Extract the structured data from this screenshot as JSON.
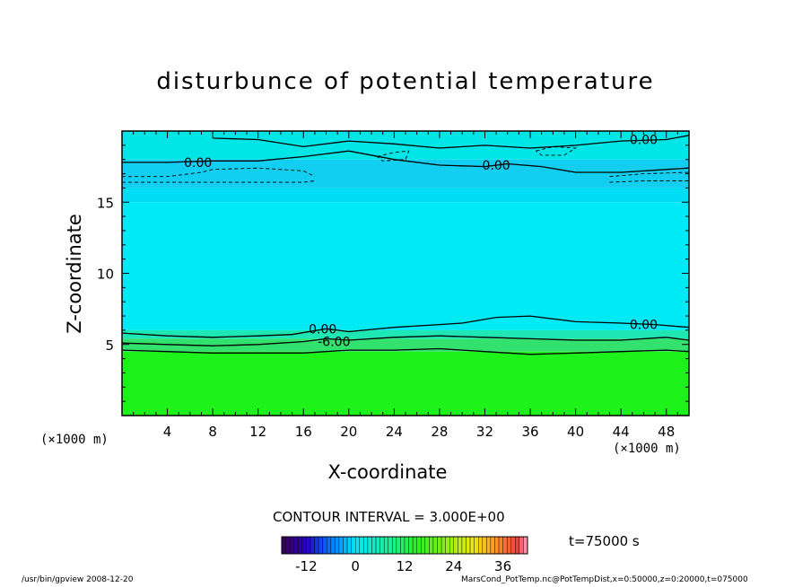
{
  "chart_data": {
    "type": "heatmap",
    "title": "disturbunce of potential temperature",
    "xlabel": "X-coordinate",
    "ylabel": "Z-coordinate",
    "x_unit_label": "(×1000 m)",
    "xlim": [
      0,
      50
    ],
    "ylim": [
      0,
      20
    ],
    "x_ticks": [
      4,
      8,
      12,
      16,
      20,
      24,
      28,
      32,
      36,
      40,
      44,
      48
    ],
    "y_ticks": [
      5,
      10,
      15
    ],
    "contour_interval": "CONTOUR INTERVAL = 3.000E+00",
    "contour_labels": [
      "0.00",
      "0.00",
      "0.00",
      "0.00",
      "-6.00",
      "0.00"
    ],
    "time": "t=75000 s",
    "colorbar": {
      "range": [
        -18,
        42
      ],
      "ticks": [
        -12,
        0,
        12,
        24,
        36
      ]
    },
    "layers": [
      {
        "z_from": 0,
        "z_to": 4.5,
        "value": 3,
        "color": "#1df21a"
      },
      {
        "z_from": 4.5,
        "z_to": 5.4,
        "value": 0,
        "color": "#33e16e"
      },
      {
        "z_from": 5.4,
        "z_to": 6.0,
        "value": 0,
        "color": "#1fe7b4"
      },
      {
        "z_from": 6.0,
        "z_to": 15.0,
        "value": -3,
        "color": "#00eaf6"
      },
      {
        "z_from": 15.0,
        "z_to": 16.0,
        "value": -6,
        "color": "#00ddf5"
      },
      {
        "z_from": 16.0,
        "z_to": 18.0,
        "value": -9,
        "color": "#12cef0"
      },
      {
        "z_from": 18.0,
        "z_to": 20.0,
        "value": -3,
        "color": "#00e6e6"
      }
    ],
    "contours": [
      {
        "kind": "solid",
        "points": [
          [
            0,
            5.8
          ],
          [
            4,
            5.6
          ],
          [
            8,
            5.5
          ],
          [
            12,
            5.6
          ],
          [
            15,
            5.7
          ],
          [
            18,
            6.1
          ],
          [
            20,
            5.9
          ],
          [
            24,
            6.2
          ],
          [
            28,
            6.4
          ],
          [
            30,
            6.5
          ],
          [
            33,
            6.9
          ],
          [
            36,
            7.0
          ],
          [
            40,
            6.6
          ],
          [
            44,
            6.5
          ],
          [
            47,
            6.4
          ],
          [
            50,
            6.2
          ]
        ]
      },
      {
        "kind": "solid",
        "points": [
          [
            0,
            5.1
          ],
          [
            4,
            5.0
          ],
          [
            8,
            4.9
          ],
          [
            12,
            5.0
          ],
          [
            16,
            5.2
          ],
          [
            18,
            5.4
          ],
          [
            20,
            5.3
          ],
          [
            24,
            5.5
          ],
          [
            28,
            5.6
          ],
          [
            32,
            5.5
          ],
          [
            36,
            5.4
          ],
          [
            40,
            5.3
          ],
          [
            44,
            5.3
          ],
          [
            48,
            5.5
          ],
          [
            50,
            5.3
          ]
        ]
      },
      {
        "kind": "solid",
        "points": [
          [
            0,
            4.6
          ],
          [
            4,
            4.5
          ],
          [
            8,
            4.4
          ],
          [
            12,
            4.4
          ],
          [
            16,
            4.4
          ],
          [
            20,
            4.6
          ],
          [
            24,
            4.6
          ],
          [
            28,
            4.7
          ],
          [
            32,
            4.5
          ],
          [
            36,
            4.3
          ],
          [
            40,
            4.4
          ],
          [
            44,
            4.5
          ],
          [
            48,
            4.6
          ],
          [
            50,
            4.5
          ]
        ]
      },
      {
        "kind": "solid",
        "points": [
          [
            0,
            17.8
          ],
          [
            4,
            17.8
          ],
          [
            8,
            17.9
          ],
          [
            12,
            17.9
          ],
          [
            16,
            18.2
          ],
          [
            20,
            18.6
          ],
          [
            24,
            18.0
          ],
          [
            28,
            17.6
          ],
          [
            32,
            17.5
          ],
          [
            34,
            17.7
          ],
          [
            37,
            17.5
          ],
          [
            40,
            17.1
          ],
          [
            44,
            17.1
          ],
          [
            48,
            17.3
          ],
          [
            50,
            17.4
          ]
        ]
      },
      {
        "kind": "solid",
        "points": [
          [
            8,
            19.5
          ],
          [
            12,
            19.4
          ],
          [
            16,
            18.9
          ],
          [
            20,
            19.3
          ],
          [
            24,
            19.1
          ],
          [
            28,
            18.8
          ],
          [
            32,
            19.0
          ],
          [
            36,
            18.8
          ],
          [
            40,
            19.0
          ],
          [
            44,
            19.3
          ],
          [
            48,
            19.4
          ],
          [
            50,
            19.7
          ]
        ]
      },
      {
        "kind": "dashed",
        "points": [
          [
            0,
            16.4
          ],
          [
            4,
            16.4
          ],
          [
            8,
            16.4
          ],
          [
            12,
            16.4
          ],
          [
            16,
            16.4
          ],
          [
            17,
            16.5
          ]
        ]
      },
      {
        "kind": "dashed",
        "points": [
          [
            0,
            16.8
          ],
          [
            4,
            16.8
          ],
          [
            7,
            17.1
          ],
          [
            8,
            17.3
          ],
          [
            12,
            17.4
          ],
          [
            16,
            17.2
          ],
          [
            17,
            16.8
          ]
        ]
      },
      {
        "kind": "dashed",
        "points": [
          [
            43,
            16.4
          ],
          [
            46,
            16.5
          ],
          [
            50,
            16.5
          ]
        ]
      },
      {
        "kind": "dashed",
        "points": [
          [
            43,
            16.8
          ],
          [
            46,
            17.0
          ],
          [
            50,
            17.1
          ]
        ]
      },
      {
        "kind": "dashed",
        "points": [
          [
            22.5,
            18.2
          ],
          [
            24,
            18.5
          ],
          [
            25.3,
            18.6
          ],
          [
            25,
            18.0
          ],
          [
            23,
            17.9
          ],
          [
            22.5,
            18.2
          ]
        ]
      },
      {
        "kind": "dashed",
        "points": [
          [
            36.5,
            18.6
          ],
          [
            38,
            18.9
          ],
          [
            40,
            18.8
          ],
          [
            39,
            18.3
          ],
          [
            37,
            18.3
          ],
          [
            36.5,
            18.6
          ]
        ]
      }
    ]
  },
  "footer": {
    "left": "/usr/bin/gpview   2008-12-20",
    "right": "MarsCond_PotTemp.nc@PotTempDist,x=0:50000,z=0:20000,t=075000"
  }
}
